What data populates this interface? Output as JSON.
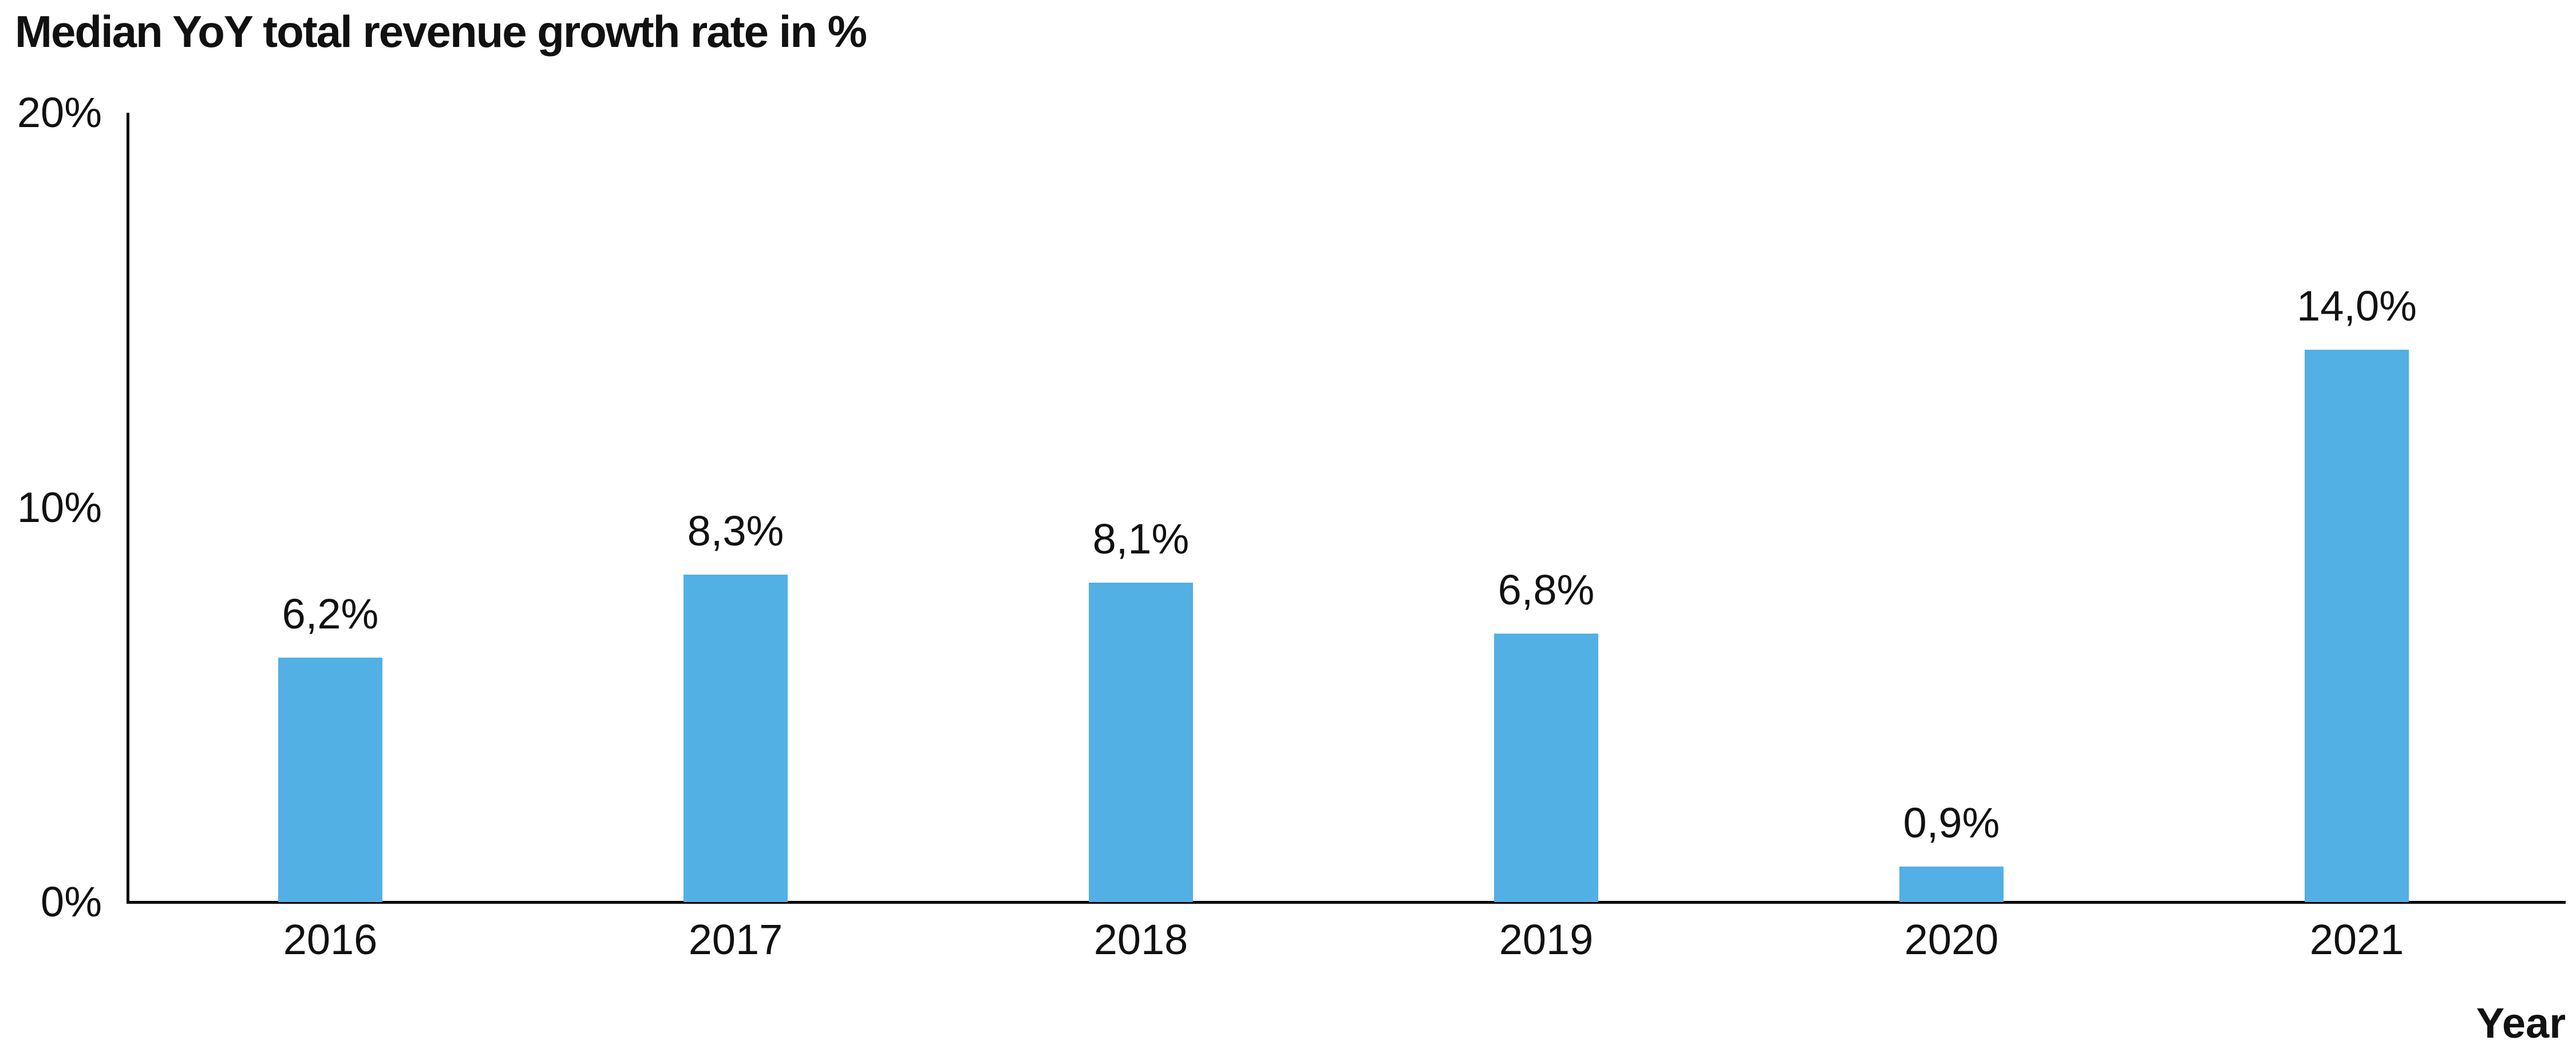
{
  "title": "Median YoY total revenue growth rate in %",
  "chart_data": {
    "type": "bar",
    "title": "Median YoY total revenue growth rate in %",
    "categories": [
      "2016",
      "2017",
      "2018",
      "2019",
      "2020",
      "2021"
    ],
    "values": [
      6.2,
      8.3,
      8.1,
      6.8,
      0.9,
      14.0
    ],
    "value_labels": [
      "6,2%",
      "8,3%",
      "8,1%",
      "6,8%",
      "0,9%",
      "14,0%"
    ],
    "xlabel": "Year",
    "ylabel": "",
    "ylim": [
      0,
      20
    ],
    "ytick_values": [
      0,
      10,
      20
    ],
    "ytick_labels": [
      "0%",
      "10%",
      "20%"
    ],
    "grid": false,
    "legend": false,
    "decimal_separator": ",",
    "bar_color": "#52B0E5",
    "axis_color": "#000000",
    "text_color": "#111111",
    "background_color": "#FFFFFF"
  }
}
